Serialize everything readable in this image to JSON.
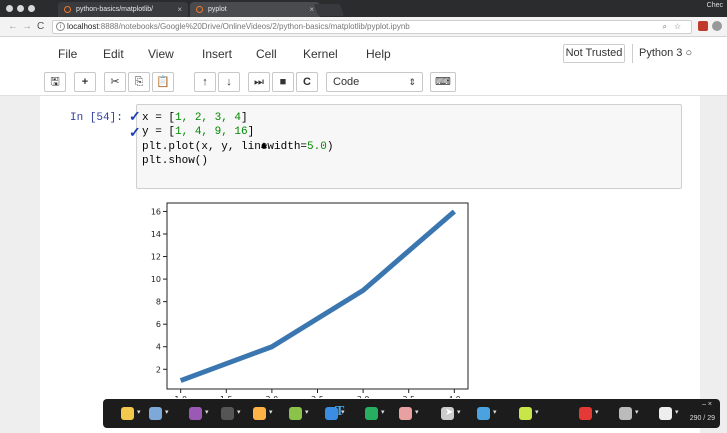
{
  "browser": {
    "tabs": [
      {
        "title": "python-basics/matplotlib/",
        "close": "×"
      },
      {
        "title": "pyplot",
        "close": "×"
      }
    ],
    "profile": "Chec",
    "nav": {
      "back": "←",
      "forward": "→",
      "reload": "C"
    },
    "url_host": "localhost",
    "url_rest": ":8888/notebooks/Google%20Drive/OnlineVideos/2/python-basics/matplotlib/pyplot.ipynb",
    "url_icons": {
      "search": "⌕",
      "star": "☆"
    }
  },
  "menu": [
    "File",
    "Edit",
    "View",
    "Insert",
    "Cell",
    "Kernel",
    "Help"
  ],
  "trusted": "Not Trusted",
  "kernel": "Python 3",
  "kernel_indicator": "○",
  "toolbar": {
    "buttons": [
      "save-icon",
      "plus-icon",
      "cut-icon",
      "copy-icon",
      "paste-icon",
      "arrow-up-icon",
      "arrow-down-icon",
      "run-icon",
      "stop-icon",
      "restart-icon",
      "keyboard-icon"
    ],
    "glyphs": {
      "save": "🖫",
      "add": "+",
      "cut": "✂",
      "copy": "⎘",
      "paste": "📋",
      "up": "↑",
      "down": "↓",
      "run": "⏭",
      "stop": "■",
      "restart": "C",
      "keyboard": "⌨"
    },
    "cell_type": "Code",
    "cell_type_caret": "⇕"
  },
  "cell": {
    "prompt": "In [54]:",
    "lines": [
      {
        "pre": "x = [",
        "nums": "1, 2, 3, 4",
        "post": "]"
      },
      {
        "pre": "y = [",
        "nums": "1, 4, 9, 16",
        "post": "]"
      },
      {
        "pre": "plt.plot(x, y, linewidth=",
        "nums": "5.0",
        "post": ")"
      },
      {
        "pre": "plt.show()",
        "nums": "",
        "post": ""
      }
    ]
  },
  "chart_data": {
    "type": "line",
    "x": [
      1,
      2,
      3,
      4
    ],
    "series": [
      {
        "values": [
          1,
          4,
          9,
          16
        ],
        "color": "#3a76af"
      }
    ],
    "yticks": [
      "2",
      "4",
      "6",
      "8",
      "10",
      "12",
      "14",
      "16"
    ],
    "xticks": [
      "1.0",
      "1.5",
      "2.0",
      "2.5",
      "3.0",
      "3.5",
      "4.0"
    ],
    "xlim": [
      0.85,
      4.15
    ],
    "ylim": [
      0.25,
      16.75
    ]
  },
  "annotation_toolbar": {
    "counter": "290 / 29",
    "controls": "– ×",
    "dropdown": "▾",
    "colors": [
      "#f2c94c",
      "#7ea8d8",
      "#9b59b6",
      "#555555",
      "#ffb347",
      "#8bc34a",
      "#3a8de0",
      "#27ae60",
      "#e8a0a0",
      "#cccccc",
      "#4aa3df",
      "#c8e64a",
      "#e53935",
      "#bbbbbb",
      "#eeeeee"
    ],
    "text_tool": "T",
    "pointer": "➤"
  }
}
